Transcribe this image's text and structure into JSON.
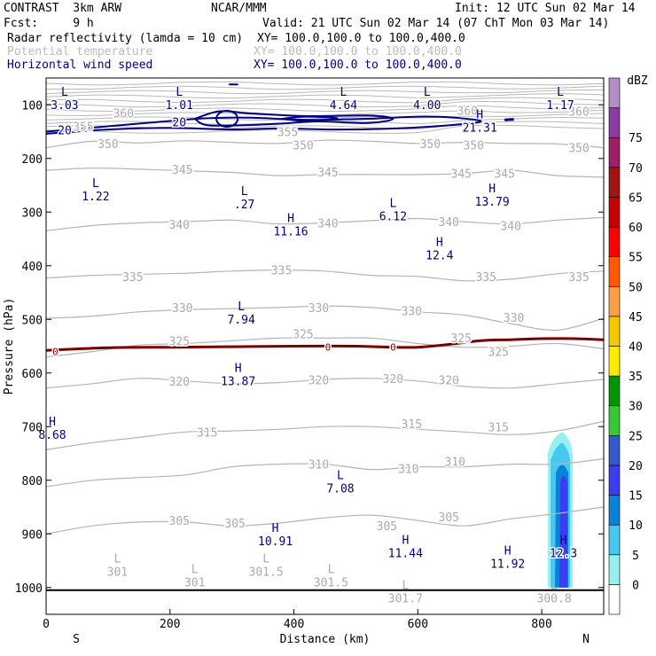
{
  "header": {
    "title": "CONTRAST  3km ARW",
    "org": "NCAR/MMM",
    "init": "Init: 12 UTC Sun 02 Mar 14",
    "fcst": "Fcst:     9 h",
    "valid": "Valid: 21 UTC Sun 02 Mar 14 (07 ChT Mon 03 Mar 14)",
    "fields": [
      {
        "label": "Radar reflectivity (lamda = 10 cm)",
        "xy": "XY= 100.0,100.0 to 100.0,400.0",
        "color": "#000000"
      },
      {
        "label": "Potential temperature",
        "xy": "XY= 100.0,100.0 to 100.0,400.0",
        "color": "#bbbbbb"
      },
      {
        "label": "Horizontal wind speed",
        "xy": "XY= 100.0,100.0 to 100.0,400.0",
        "color": "#000080"
      }
    ]
  },
  "chart_data": {
    "type": "cross-section",
    "xlabel": "Distance (km)",
    "ylabel": "Pressure (hPa)",
    "xlim": [
      0,
      900
    ],
    "ylim": [
      1050,
      50
    ],
    "x_ticks": [
      0,
      200,
      400,
      600,
      800
    ],
    "y_ticks": [
      100,
      200,
      300,
      400,
      500,
      600,
      700,
      800,
      900,
      1000
    ],
    "endpoints": {
      "left": "S",
      "right": "N"
    },
    "theta_contours": [
      {
        "value": 350,
        "p": [
          180,
          168,
          171,
          167,
          170,
          172,
          166,
          168,
          172,
          170,
          172,
          173,
          180
        ]
      },
      {
        "value": 345,
        "p": [
          222,
          218,
          220,
          223,
          226,
          232,
          230,
          230,
          230,
          228,
          222,
          232,
          235
        ]
      },
      {
        "value": 340,
        "p": [
          335,
          325,
          320,
          318,
          315,
          322,
          320,
          316,
          312,
          318,
          322,
          315,
          310
        ]
      },
      {
        "value": 335,
        "p": [
          423,
          418,
          416,
          414,
          410,
          408,
          410,
          418,
          420,
          428,
          425,
          415,
          410
        ]
      },
      {
        "value": 330,
        "p": [
          498,
          494,
          486,
          482,
          480,
          478,
          475,
          478,
          486,
          492,
          508,
          520,
          498
        ]
      },
      {
        "value": 325,
        "p": [
          570,
          560,
          548,
          545,
          540,
          535,
          535,
          535,
          545,
          552,
          550,
          545,
          555
        ]
      },
      {
        "value": 320,
        "p": [
          628,
          620,
          610,
          615,
          620,
          618,
          612,
          610,
          615,
          625,
          628,
          620,
          612
        ]
      },
      {
        "value": 315,
        "p": [
          743,
          730,
          720,
          710,
          708,
          705,
          700,
          700,
          705,
          710,
          715,
          708,
          690
        ]
      },
      {
        "value": 310,
        "p": [
          812,
          800,
          795,
          790,
          775,
          770,
          770,
          780,
          775,
          775,
          770,
          770,
          760
        ]
      },
      {
        "value": 305,
        "p": [
          900,
          885,
          878,
          878,
          885,
          880,
          870,
          865,
          875,
          885,
          872,
          862,
          850
        ]
      }
    ],
    "theta_upper_stack": {
      "values": [
        355,
        360,
        365
      ],
      "p_top": 60,
      "p_bottom": 150
    },
    "wind_contours": [
      {
        "value": 20,
        "label": "20"
      },
      {
        "value": 25,
        "label": ""
      },
      {
        "value": 30,
        "label": ""
      }
    ],
    "freezing_line": {
      "label": "0",
      "x": [
        0,
        100,
        200,
        300,
        400,
        500,
        600,
        700,
        750,
        800,
        850,
        900
      ],
      "p": [
        558,
        553,
        552,
        551,
        550,
        550,
        552,
        540,
        538,
        536,
        536,
        538
      ]
    },
    "theta_labels": [
      {
        "text": "360",
        "x": 125,
        "p": 115
      },
      {
        "text": "355",
        "x": 60,
        "p": 140
      },
      {
        "text": "360",
        "x": 680,
        "p": 110
      },
      {
        "text": "360",
        "x": 860,
        "p": 112
      },
      {
        "text": "355",
        "x": 390,
        "p": 150
      },
      {
        "text": "350",
        "x": 100,
        "p": 172
      },
      {
        "text": "350",
        "x": 415,
        "p": 175
      },
      {
        "text": "350",
        "x": 620,
        "p": 172
      },
      {
        "text": "350",
        "x": 690,
        "p": 175
      },
      {
        "text": "350",
        "x": 860,
        "p": 180
      },
      {
        "text": "345",
        "x": 220,
        "p": 220
      },
      {
        "text": "345",
        "x": 455,
        "p": 225
      },
      {
        "text": "345",
        "x": 670,
        "p": 228
      },
      {
        "text": "345",
        "x": 740,
        "p": 228
      },
      {
        "text": "340",
        "x": 215,
        "p": 323
      },
      {
        "text": "340",
        "x": 455,
        "p": 320
      },
      {
        "text": "340",
        "x": 650,
        "p": 318
      },
      {
        "text": "340",
        "x": 750,
        "p": 325
      },
      {
        "text": "335",
        "x": 140,
        "p": 420
      },
      {
        "text": "335",
        "x": 380,
        "p": 408
      },
      {
        "text": "335",
        "x": 710,
        "p": 420
      },
      {
        "text": "335",
        "x": 860,
        "p": 420
      },
      {
        "text": "330",
        "x": 220,
        "p": 478
      },
      {
        "text": "330",
        "x": 440,
        "p": 478
      },
      {
        "text": "330",
        "x": 590,
        "p": 484
      },
      {
        "text": "330",
        "x": 755,
        "p": 496
      },
      {
        "text": "325",
        "x": 215,
        "p": 540
      },
      {
        "text": "325",
        "x": 415,
        "p": 527
      },
      {
        "text": "325",
        "x": 670,
        "p": 534
      },
      {
        "text": "325",
        "x": 730,
        "p": 560
      },
      {
        "text": "320",
        "x": 215,
        "p": 615
      },
      {
        "text": "320",
        "x": 440,
        "p": 613
      },
      {
        "text": "320",
        "x": 560,
        "p": 610
      },
      {
        "text": "320",
        "x": 650,
        "p": 613
      },
      {
        "text": "315",
        "x": 260,
        "p": 710
      },
      {
        "text": "315",
        "x": 590,
        "p": 695
      },
      {
        "text": "315",
        "x": 730,
        "p": 700
      },
      {
        "text": "310",
        "x": 440,
        "p": 770
      },
      {
        "text": "310",
        "x": 585,
        "p": 778
      },
      {
        "text": "310",
        "x": 660,
        "p": 765
      },
      {
        "text": "305",
        "x": 215,
        "p": 875
      },
      {
        "text": "305",
        "x": 305,
        "p": 880
      },
      {
        "text": "305",
        "x": 550,
        "p": 885
      },
      {
        "text": "305",
        "x": 650,
        "p": 868
      }
    ],
    "wind_line_labels": [
      {
        "text": "20",
        "x": 30,
        "p": 147
      },
      {
        "text": "20",
        "x": 215,
        "p": 132
      }
    ],
    "freezing_labels": [
      {
        "text": "0",
        "x": 15,
        "p": 558
      },
      {
        "text": "0",
        "x": 455,
        "p": 550
      },
      {
        "text": "0",
        "x": 560,
        "p": 550
      }
    ],
    "extrema": [
      {
        "kind": "L",
        "value": "3.03",
        "x": 30,
        "p": 75,
        "color": "#000080"
      },
      {
        "kind": "L",
        "value": "1.01",
        "x": 215,
        "p": 75,
        "color": "#000080"
      },
      {
        "kind": "L",
        "value": "4.64",
        "x": 480,
        "p": 75,
        "color": "#000080"
      },
      {
        "kind": "L",
        "value": "4.00",
        "x": 615,
        "p": 75,
        "color": "#000080"
      },
      {
        "kind": "L",
        "value": "1.17",
        "x": 830,
        "p": 75,
        "color": "#000080"
      },
      {
        "kind": "H",
        "value": "21.31",
        "x": 700,
        "p": 117,
        "color": "#000080"
      },
      {
        "kind": "L",
        "value": "1.22",
        "x": 80,
        "p": 245,
        "color": "#000080"
      },
      {
        "kind": "L",
        "value": ".27",
        "x": 320,
        "p": 260,
        "color": "#000080"
      },
      {
        "kind": "H",
        "value": "13.79",
        "x": 720,
        "p": 255,
        "color": "#000080"
      },
      {
        "kind": "L",
        "value": "6.12",
        "x": 560,
        "p": 282,
        "color": "#000080"
      },
      {
        "kind": "H",
        "value": "11.16",
        "x": 395,
        "p": 310,
        "color": "#000080"
      },
      {
        "kind": "H",
        "value": "12.4",
        "x": 635,
        "p": 355,
        "color": "#000080"
      },
      {
        "kind": "L",
        "value": "7.94",
        "x": 315,
        "p": 475,
        "color": "#000080"
      },
      {
        "kind": "H",
        "value": "13.87",
        "x": 310,
        "p": 590,
        "color": "#000080"
      },
      {
        "kind": "H",
        "value": "8.68",
        "x": 10,
        "p": 690,
        "color": "#000080"
      },
      {
        "kind": "L",
        "value": "7.08",
        "x": 475,
        "p": 790,
        "color": "#000080"
      },
      {
        "kind": "H",
        "value": "10.91",
        "x": 370,
        "p": 888,
        "color": "#000080"
      },
      {
        "kind": "H",
        "value": "11.44",
        "x": 580,
        "p": 910,
        "color": "#000080"
      },
      {
        "kind": "H",
        "value": "11.92",
        "x": 745,
        "p": 930,
        "color": "#000080"
      },
      {
        "kind": "H",
        "value": "12.3",
        "x": 835,
        "p": 910,
        "color": "#000080"
      },
      {
        "kind": "L",
        "value": "301",
        "x": 115,
        "p": 945,
        "color": "#aaaaaa"
      },
      {
        "kind": "L",
        "value": "301",
        "x": 240,
        "p": 965,
        "color": "#aaaaaa"
      },
      {
        "kind": "L",
        "value": "301.5",
        "x": 355,
        "p": 945,
        "color": "#aaaaaa"
      },
      {
        "kind": "L",
        "value": "301.5",
        "x": 460,
        "p": 965,
        "color": "#aaaaaa"
      },
      {
        "kind": "L",
        "value": "301.7",
        "x": 580,
        "p": 995,
        "color": "#aaaaaa"
      },
      {
        "kind": "L",
        "value": "300.8",
        "x": 820,
        "p": 995,
        "color": "#aaaaaa"
      }
    ],
    "reflectivity_cell": {
      "x": 830,
      "p_top": 720,
      "p_bottom": 1000,
      "max_dbz": 20
    },
    "colorbar": {
      "unit": "dBZ",
      "levels": [
        0,
        5,
        10,
        15,
        20,
        25,
        30,
        35,
        40,
        45,
        50,
        55,
        60,
        65,
        70,
        75
      ],
      "colors": [
        "#ffffff",
        "#96f0f0",
        "#46c8f0",
        "#0a82dc",
        "#3c3cf0",
        "#325ac8",
        "#37c837",
        "#009600",
        "#ffeb00",
        "#f5c800",
        "#ffa046",
        "#ff5a00",
        "#ff0000",
        "#c80000",
        "#a01414",
        "#a01e64",
        "#8c3ca0",
        "#b48cc8",
        "#ffffff"
      ]
    }
  }
}
